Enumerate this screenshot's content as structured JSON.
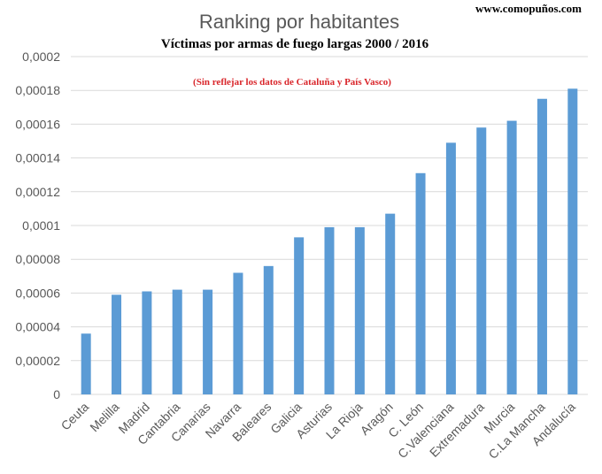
{
  "website": "www.comopuños.com",
  "chart_data": {
    "type": "bar",
    "title": "Ranking por habitantes",
    "subtitle": "Víctimas por armas de fuego largas 2000 / 2016",
    "note": "(Sin reflejar los datos de Cataluña y País Vasco)",
    "xlabel": "",
    "ylabel": "",
    "ylim": [
      0,
      0.0002
    ],
    "yticks": [
      0,
      2e-05,
      4e-05,
      6e-05,
      8e-05,
      0.0001,
      0.00012,
      0.00014,
      0.00016,
      0.00018,
      0.0002
    ],
    "ytick_labels": [
      "0",
      "0,00002",
      "0,00004",
      "0,00006",
      "0,00008",
      "0,0001",
      "0,00012",
      "0,00014",
      "0,00016",
      "0,00018",
      "0,0002"
    ],
    "grid": true,
    "bar_color": "#5b9bd5",
    "categories": [
      "Ceuta",
      "Melilla",
      "Madrid",
      "Cantabria",
      "Canarias",
      "Navarra",
      "Baleares",
      "Galicia",
      "Asturias",
      "La Rioja",
      "Aragón",
      "C. León",
      "C.Valenciana",
      "Extremadura",
      "Murcia",
      "C.La Mancha",
      "Andalucía"
    ],
    "values": [
      3.6e-05,
      5.9e-05,
      6.1e-05,
      6.2e-05,
      6.2e-05,
      7.2e-05,
      7.6e-05,
      9.3e-05,
      9.9e-05,
      9.9e-05,
      0.000107,
      0.000131,
      0.000149,
      0.000158,
      0.000162,
      0.000175,
      0.000181
    ]
  }
}
